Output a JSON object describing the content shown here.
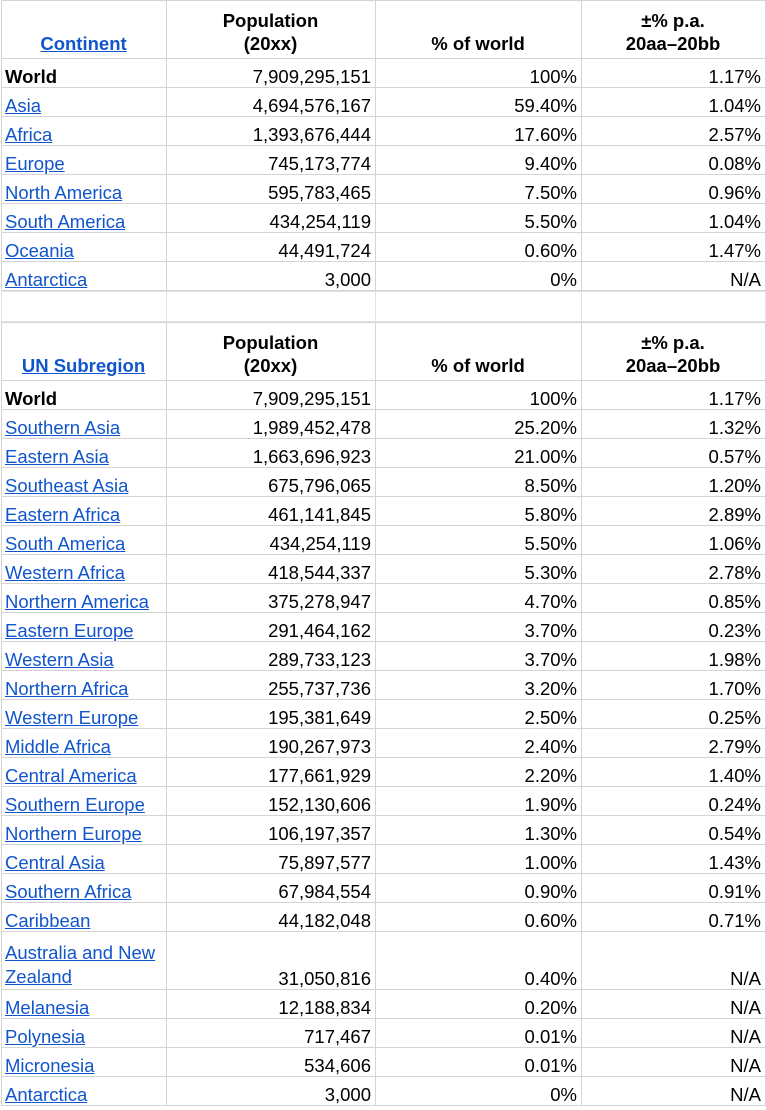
{
  "continent_table": {
    "headers": {
      "name": "Continent",
      "population_line1": "Population",
      "population_line2": "(20xx)",
      "pct": "% of world",
      "growth_line1": "±% p.a.",
      "growth_line2": "20aa–20bb"
    },
    "rows": [
      {
        "name": "World",
        "population": "7,909,295,151",
        "pct": "100%",
        "growth": "1.17%"
      },
      {
        "name": "Asia",
        "population": "4,694,576,167",
        "pct": "59.40%",
        "growth": "1.04%"
      },
      {
        "name": "Africa",
        "population": "1,393,676,444",
        "pct": "17.60%",
        "growth": "2.57%"
      },
      {
        "name": "Europe",
        "population": "745,173,774",
        "pct": "9.40%",
        "growth": "0.08%"
      },
      {
        "name": "North America",
        "population": "595,783,465",
        "pct": "7.50%",
        "growth": "0.96%"
      },
      {
        "name": "South America",
        "population": "434,254,119",
        "pct": "5.50%",
        "growth": "1.04%"
      },
      {
        "name": "Oceania",
        "population": "44,491,724",
        "pct": "0.60%",
        "growth": "1.47%"
      },
      {
        "name": "Antarctica",
        "population": "3,000",
        "pct": "0%",
        "growth": "N/A"
      }
    ]
  },
  "subregion_table": {
    "headers": {
      "name": "UN Subregion",
      "population_line1": "Population",
      "population_line2": "(20xx)",
      "pct": "% of world",
      "growth_line1": "±% p.a.",
      "growth_line2": "20aa–20bb"
    },
    "rows": [
      {
        "name": "World",
        "population": "7,909,295,151",
        "pct": "100%",
        "growth": "1.17%"
      },
      {
        "name": "Southern Asia",
        "population": "1,989,452,478",
        "pct": "25.20%",
        "growth": "1.32%"
      },
      {
        "name": "Eastern Asia",
        "population": "1,663,696,923",
        "pct": "21.00%",
        "growth": "0.57%"
      },
      {
        "name": "Southeast Asia",
        "population": "675,796,065",
        "pct": "8.50%",
        "growth": "1.20%"
      },
      {
        "name": "Eastern Africa",
        "population": "461,141,845",
        "pct": "5.80%",
        "growth": "2.89%"
      },
      {
        "name": "South America",
        "population": "434,254,119",
        "pct": "5.50%",
        "growth": "1.06%"
      },
      {
        "name": "Western Africa",
        "population": "418,544,337",
        "pct": "5.30%",
        "growth": "2.78%"
      },
      {
        "name": "Northern America",
        "population": "375,278,947",
        "pct": "4.70%",
        "growth": "0.85%"
      },
      {
        "name": "Eastern Europe",
        "population": "291,464,162",
        "pct": "3.70%",
        "growth": "0.23%"
      },
      {
        "name": "Western Asia",
        "population": "289,733,123",
        "pct": "3.70%",
        "growth": "1.98%"
      },
      {
        "name": "Northern Africa",
        "population": "255,737,736",
        "pct": "3.20%",
        "growth": "1.70%"
      },
      {
        "name": "Western Europe",
        "population": "195,381,649",
        "pct": "2.50%",
        "growth": "0.25%"
      },
      {
        "name": "Middle Africa",
        "population": "190,267,973",
        "pct": "2.40%",
        "growth": "2.79%"
      },
      {
        "name": "Central America",
        "population": "177,661,929",
        "pct": "2.20%",
        "growth": "1.40%"
      },
      {
        "name": "Southern Europe",
        "population": "152,130,606",
        "pct": "1.90%",
        "growth": "0.24%"
      },
      {
        "name": "Northern Europe",
        "population": "106,197,357",
        "pct": "1.30%",
        "growth": "0.54%"
      },
      {
        "name": "Central Asia",
        "population": "75,897,577",
        "pct": "1.00%",
        "growth": "1.43%"
      },
      {
        "name": "Southern Africa",
        "population": "67,984,554",
        "pct": "0.90%",
        "growth": "0.91%"
      },
      {
        "name": "Caribbean",
        "population": "44,182,048",
        "pct": "0.60%",
        "growth": "0.71%"
      },
      {
        "name": "Australia and New Zealand",
        "population": "31,050,816",
        "pct": "0.40%",
        "growth": "N/A"
      },
      {
        "name": "Melanesia",
        "population": "12,188,834",
        "pct": "0.20%",
        "growth": "N/A"
      },
      {
        "name": "Polynesia",
        "population": "717,467",
        "pct": "0.01%",
        "growth": "N/A"
      },
      {
        "name": "Micronesia",
        "population": "534,606",
        "pct": "0.01%",
        "growth": "N/A"
      },
      {
        "name": "Antarctica",
        "population": "3,000",
        "pct": "0%",
        "growth": "N/A"
      }
    ]
  },
  "colors": {
    "link": "#1155cc",
    "grid": "#d4d4d4"
  }
}
